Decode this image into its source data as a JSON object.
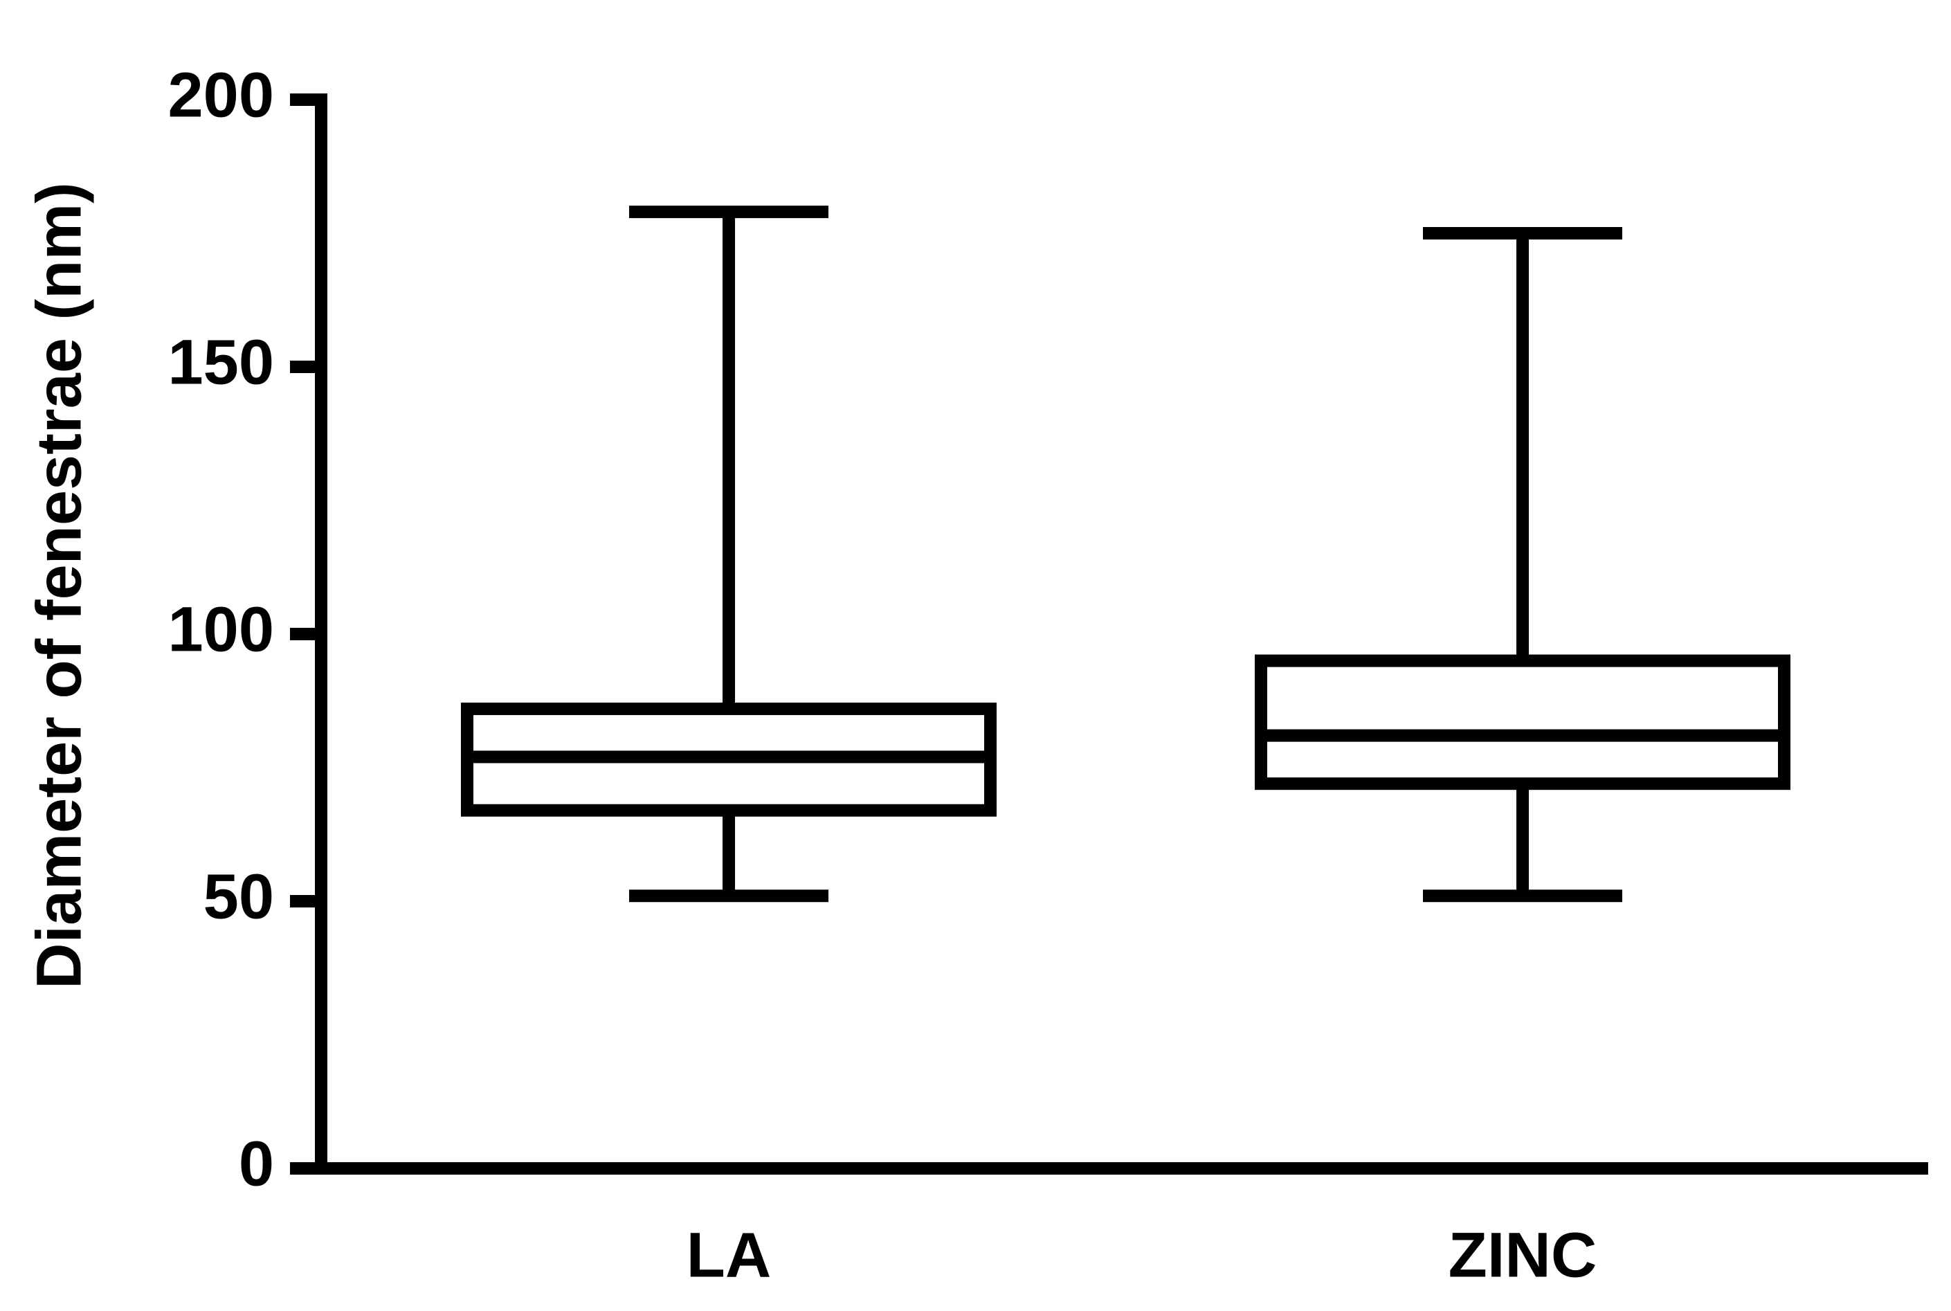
{
  "chart_data": {
    "type": "box",
    "ylabel": "Diameter of fenestrae (nm)",
    "categories": [
      "LA",
      "ZINC"
    ],
    "min": [
      51,
      51
    ],
    "q1": [
      67,
      72
    ],
    "median": [
      77,
      81
    ],
    "q3": [
      86,
      95
    ],
    "max": [
      179,
      175
    ],
    "color": "#000000",
    "ylim": [
      0,
      200
    ],
    "yticks": [
      0,
      50,
      100,
      150,
      200
    ]
  }
}
